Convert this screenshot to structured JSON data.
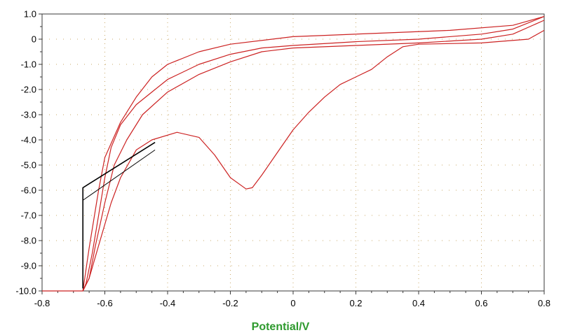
{
  "chart_data": {
    "type": "line",
    "title": "",
    "xlabel": "Potential/V",
    "ylabel": "",
    "xlim": [
      -0.8,
      0.8
    ],
    "ylim": [
      -10.0,
      1.0
    ],
    "x_ticks": [
      -0.8,
      -0.6,
      -0.4,
      -0.2,
      0,
      0.2,
      0.4,
      0.6,
      0.8
    ],
    "x_tick_labels": [
      "-0.8",
      "-0.6",
      "-0.4",
      "-0.2",
      "0",
      "0.2",
      "0.4",
      "0.6",
      "0.8"
    ],
    "y_ticks": [
      1.0,
      0,
      -1.0,
      -2.0,
      -3.0,
      -4.0,
      -5.0,
      -6.0,
      -7.0,
      -8.0,
      -9.0,
      -10.0
    ],
    "y_tick_labels": [
      "1.0",
      "0",
      "-1.0",
      "-2.0",
      "-3.0",
      "-4.0",
      "-5.0",
      "-6.0",
      "-7.0",
      "-8.0",
      "-9.0",
      "-10.0"
    ],
    "grid": "dotted vertical at major x ticks, dotted horizontal at major y ticks",
    "colors": {
      "curve": "#cc2222",
      "artifact": "#000000",
      "grid": "#c8a86a",
      "xlabel": "#2e9a2e"
    },
    "series": [
      {
        "points": [
          [
            -0.8,
            -10.0
          ],
          [
            -0.67,
            -10.0
          ],
          [
            -0.66,
            -9.7
          ],
          [
            -0.64,
            -8.5
          ],
          [
            -0.62,
            -7.0
          ],
          [
            -0.6,
            -5.5
          ],
          [
            -0.58,
            -4.3
          ],
          [
            -0.55,
            -3.4
          ],
          [
            -0.5,
            -2.6
          ],
          [
            -0.45,
            -2.1
          ],
          [
            -0.4,
            -1.6
          ],
          [
            -0.3,
            -1.0
          ],
          [
            -0.2,
            -0.6
          ],
          [
            -0.1,
            -0.35
          ],
          [
            0,
            -0.25
          ],
          [
            0.2,
            -0.1
          ],
          [
            0.4,
            0.0
          ],
          [
            0.6,
            0.2
          ],
          [
            0.7,
            0.4
          ],
          [
            0.8,
            0.9
          ]
        ]
      },
      {
        "points": [
          [
            0.8,
            0.9
          ],
          [
            0.7,
            0.55
          ],
          [
            0.5,
            0.35
          ],
          [
            0.3,
            0.25
          ],
          [
            0.1,
            0.15
          ],
          [
            0,
            0.1
          ],
          [
            -0.2,
            -0.2
          ],
          [
            -0.3,
            -0.5
          ],
          [
            -0.4,
            -1.0
          ],
          [
            -0.45,
            -1.5
          ],
          [
            -0.5,
            -2.3
          ],
          [
            -0.55,
            -3.3
          ],
          [
            -0.6,
            -4.7
          ],
          [
            -0.62,
            -6.0
          ],
          [
            -0.65,
            -8.3
          ],
          [
            -0.67,
            -10.0
          ]
        ]
      },
      {
        "points": [
          [
            -0.67,
            -10.0
          ],
          [
            -0.65,
            -9.5
          ],
          [
            -0.63,
            -8.2
          ],
          [
            -0.6,
            -6.5
          ],
          [
            -0.57,
            -5.0
          ],
          [
            -0.53,
            -4.0
          ],
          [
            -0.48,
            -3.0
          ],
          [
            -0.4,
            -2.1
          ],
          [
            -0.3,
            -1.4
          ],
          [
            -0.2,
            -0.9
          ],
          [
            -0.1,
            -0.5
          ],
          [
            0,
            -0.35
          ],
          [
            0.2,
            -0.25
          ],
          [
            0.4,
            -0.15
          ],
          [
            0.6,
            0.0
          ],
          [
            0.7,
            0.2
          ],
          [
            0.8,
            0.75
          ]
        ]
      },
      {
        "points": [
          [
            0.8,
            0.35
          ],
          [
            0.75,
            0.0
          ],
          [
            0.6,
            -0.15
          ],
          [
            0.4,
            -0.2
          ],
          [
            0.35,
            -0.3
          ],
          [
            0.3,
            -0.7
          ],
          [
            0.25,
            -1.2
          ],
          [
            0.2,
            -1.5
          ],
          [
            0.15,
            -1.8
          ],
          [
            0.1,
            -2.3
          ],
          [
            0.05,
            -2.9
          ],
          [
            0,
            -3.6
          ],
          [
            -0.05,
            -4.5
          ],
          [
            -0.1,
            -5.4
          ],
          [
            -0.13,
            -5.9
          ],
          [
            -0.15,
            -5.95
          ],
          [
            -0.2,
            -5.5
          ],
          [
            -0.25,
            -4.6
          ],
          [
            -0.3,
            -3.9
          ],
          [
            -0.37,
            -3.7
          ],
          [
            -0.45,
            -4.0
          ],
          [
            -0.5,
            -4.4
          ],
          [
            -0.55,
            -5.5
          ],
          [
            -0.58,
            -6.5
          ],
          [
            -0.62,
            -8.2
          ],
          [
            -0.65,
            -9.5
          ],
          [
            -0.67,
            -10.0
          ]
        ]
      }
    ],
    "artifacts": [
      {
        "points": [
          [
            -0.67,
            -9.9
          ],
          [
            -0.67,
            -5.9
          ],
          [
            -0.44,
            -4.1
          ]
        ]
      },
      {
        "points": [
          [
            -0.67,
            -6.4
          ],
          [
            -0.44,
            -4.4
          ]
        ]
      }
    ]
  }
}
